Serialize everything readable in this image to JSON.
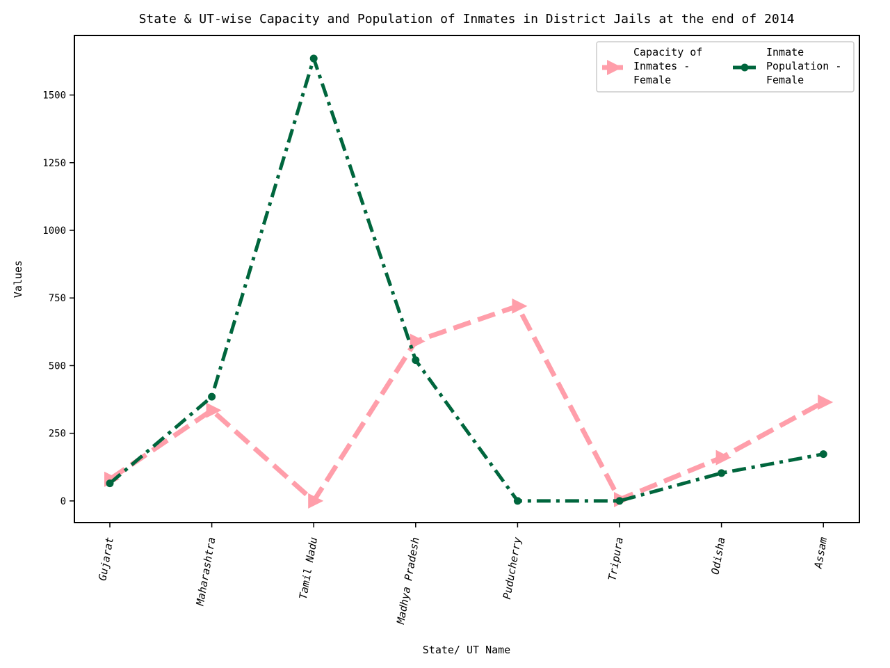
{
  "chart_data": {
    "type": "line",
    "title": "State & UT-wise Capacity and Population of Inmates in District Jails at the end of 2014",
    "xlabel": "State/ UT Name",
    "ylabel": "Values",
    "categories": [
      "Gujarat",
      "Maharashtra",
      "Tamil Nadu",
      "Madhya Pradesh",
      "Puducherry",
      "Tripura",
      "Odisha",
      "Assam"
    ],
    "ylim": [
      -80,
      1720
    ],
    "yticks": [
      0,
      250,
      500,
      750,
      1000,
      1250,
      1500
    ],
    "grid": false,
    "legend_position": "top-right",
    "series": [
      {
        "name": "Capacity of Inmates - Female",
        "legend_lines": [
          "Capacity of",
          "Inmates -",
          "Female"
        ],
        "values": [
          80,
          335,
          0,
          590,
          720,
          5,
          160,
          365
        ],
        "color": "#ff9eaa",
        "style": "dashed",
        "marker": "triangle-right"
      },
      {
        "name": "Inmate Population - Female",
        "legend_lines": [
          "Inmate",
          "Population -",
          "Female"
        ],
        "values": [
          65,
          385,
          1635,
          520,
          0,
          0,
          103,
          173
        ],
        "color": "#00663d",
        "style": "dashdot",
        "marker": "circle"
      }
    ]
  }
}
